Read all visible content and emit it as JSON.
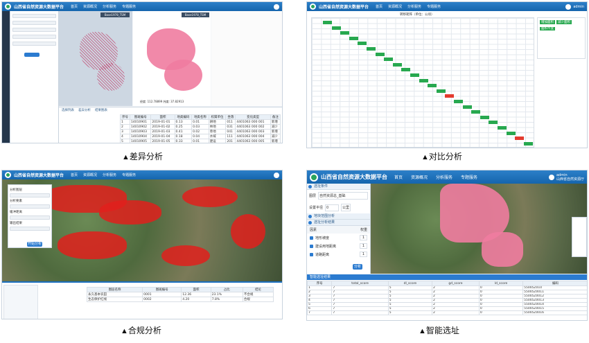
{
  "app": {
    "title": "山西省自然资源大数据平台"
  },
  "panels": {
    "diff": {
      "caption": "差异分析",
      "nav": [
        "首页",
        "资源概况",
        "分析服务",
        "专题服务"
      ],
      "map_left_label": "Base1978_TSM",
      "map_right_label": "Base1978_TSM",
      "coords": "经度: 112.78899 纬度: 37.82913",
      "table_tabs": [
        "选择列表",
        "差异分析",
        "结果图表"
      ],
      "table_headers": [
        "序号",
        "图斑编号",
        "面积",
        "地类编码",
        "地类名称",
        "权属单位",
        "坐落",
        "变化类型",
        "备注"
      ],
      "table_rows": [
        [
          "1",
          "14010901",
          "2019-01-01",
          "0.13",
          "0.01",
          "耕地",
          "011",
          "4401063 000 001",
          "新增"
        ],
        [
          "2",
          "14010902",
          "2019-01-02",
          "0.25",
          "0.03",
          "林地",
          "031",
          "4401063 000 002",
          "减少"
        ],
        [
          "3",
          "14010903",
          "2019-01-03",
          "0.41",
          "0.02",
          "草地",
          "041",
          "4401063 000 003",
          "新增"
        ],
        [
          "4",
          "14010904",
          "2019-01-04",
          "0.18",
          "0.04",
          "水域",
          "111",
          "4401063 000 004",
          "减少"
        ],
        [
          "5",
          "14010905",
          "2019-01-05",
          "0.33",
          "0.01",
          "建设",
          "201",
          "4401063 000 005",
          "新增"
        ]
      ]
    },
    "compare": {
      "caption": "对比分析",
      "nav": [
        "首页",
        "资源概况",
        "分析服务",
        "专题服务"
      ],
      "user": "admin",
      "matrix_title": "转移矩阵（单位：公顷）",
      "legend": [
        "增加面积",
        "减少面积",
        "面积不变"
      ]
    },
    "compliance": {
      "caption": "合规分析",
      "nav": [
        "首页",
        "资源概况",
        "分析服务",
        "专题服务"
      ],
      "form_labels": [
        "分析图层",
        "分析要素",
        "缓冲距离",
        "输出结果"
      ],
      "run_button": "开始分析",
      "result_headers": [
        "图层名称",
        "图斑编号",
        "面积",
        "占比",
        "结论"
      ],
      "result_rows": [
        [
          "永久基本农田",
          "0001",
          "12.36",
          "23.1%",
          "不合规"
        ],
        [
          "生态保护红线",
          "0002",
          "4.20",
          "7.8%",
          "合规"
        ]
      ]
    },
    "siting": {
      "caption": "智能选址",
      "nav": [
        "首页",
        "资源概况",
        "分析服务",
        "专题服务"
      ],
      "user": "admin",
      "org": "山西省自然资源厅",
      "sections": [
        "选址条件",
        "地块范围分析",
        "选址分析结果"
      ],
      "layer_label": "图层",
      "layer_value": "自然资源总_基础",
      "radius_label": "设置半径",
      "radius_value": "0",
      "radius_unit": "公里",
      "factors_header": [
        "因素",
        "权重"
      ],
      "factors": [
        {
          "name": "地形坡度",
          "weight": "1"
        },
        {
          "name": "建设用地距离",
          "weight": "1"
        },
        {
          "name": "道路距离",
          "weight": "1"
        }
      ],
      "analyze_button": "分析",
      "result_title": "智能选址结果",
      "result_headers": [
        "序号",
        "total_score",
        "dl_score",
        "gd_score",
        "ld_score",
        "编码"
      ],
      "result_rows": [
        [
          "1",
          "7",
          "5",
          "2",
          "0",
          "55005Z010"
        ],
        [
          "2",
          "7",
          "5",
          "2",
          "0",
          "55005Z0011"
        ],
        [
          "3",
          "7",
          "5",
          "2",
          "0",
          "55005Z0012"
        ],
        [
          "4",
          "7",
          "5",
          "2",
          "0",
          "55005Z0013"
        ],
        [
          "5",
          "7",
          "5",
          "2",
          "0",
          "55005Z0014"
        ],
        [
          "6",
          "7",
          "5",
          "2",
          "0",
          "55005Z0015"
        ],
        [
          "7",
          "7",
          "5",
          "2",
          "0",
          "55005Z0016"
        ]
      ]
    }
  },
  "colors": {
    "header": "#1b6fbf",
    "diagonal": "#27a84f",
    "highlight": "#e33b2e",
    "urban": "#e87aa0"
  }
}
